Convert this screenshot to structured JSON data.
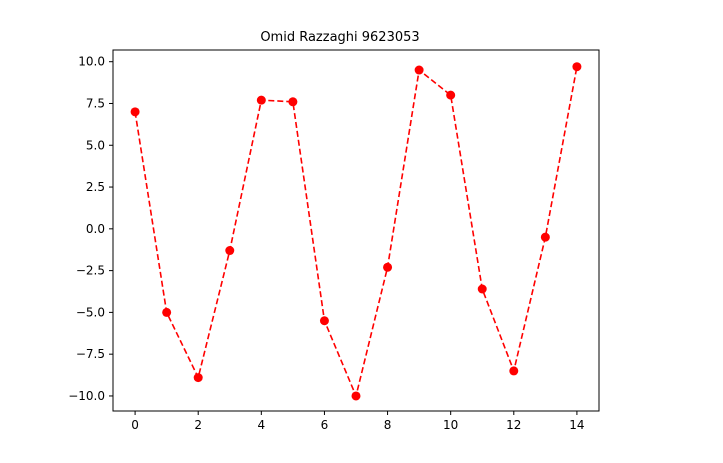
{
  "chart_data": {
    "type": "line",
    "title": "Omid Razzaghi 9623053",
    "xlabel": "",
    "ylabel": "",
    "xlim": [
      -0.7,
      14.7
    ],
    "ylim": [
      -10.9,
      10.7
    ],
    "x_ticks": [
      0,
      2,
      4,
      6,
      8,
      10,
      12,
      14
    ],
    "x_tick_labels": [
      "0",
      "2",
      "4",
      "6",
      "8",
      "10",
      "12",
      "14"
    ],
    "y_ticks": [
      10.0,
      7.5,
      5.0,
      2.5,
      0.0,
      -2.5,
      -5.0,
      -7.5,
      -10.0
    ],
    "y_tick_labels": [
      "10.0",
      "7.5",
      "5.0",
      "2.5",
      "0.0",
      "−2.5",
      "−5.0",
      "−7.5",
      "−10.0"
    ],
    "grid": false,
    "x": [
      0,
      1,
      2,
      3,
      4,
      5,
      6,
      7,
      8,
      9,
      10,
      11,
      12,
      13,
      14
    ],
    "series": [
      {
        "values": [
          7.0,
          -5.0,
          -8.9,
          -1.3,
          7.7,
          7.6,
          -5.5,
          -10.0,
          -2.3,
          9.5,
          8.0,
          -3.6,
          -8.5,
          -0.5,
          9.7
        ],
        "color": "#ff0000",
        "line_style": "dashed",
        "marker": "circle"
      }
    ]
  }
}
